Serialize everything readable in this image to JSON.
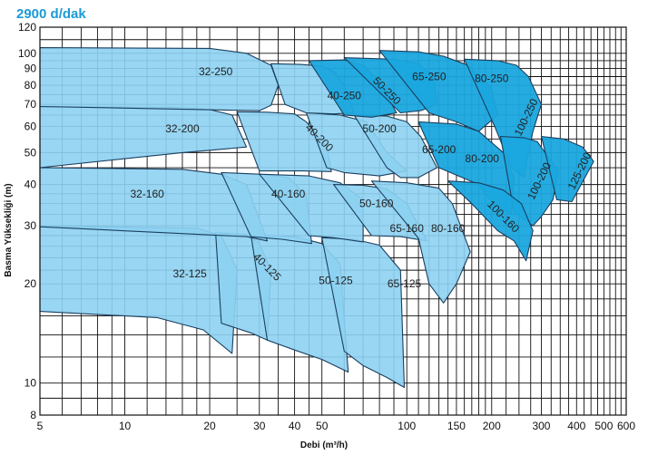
{
  "chart_data": {
    "type": "area",
    "title": "2900 d/dak",
    "xlabel": "Debi (m³/h)",
    "ylabel": "Basma Yüksekliği (m)",
    "x_scale": "log",
    "y_scale": "log",
    "xlim": [
      5,
      600
    ],
    "ylim": [
      8,
      120
    ],
    "x_ticks": [
      5,
      10,
      20,
      30,
      40,
      50,
      100,
      150,
      200,
      300,
      400,
      500,
      600
    ],
    "y_ticks": [
      8,
      10,
      20,
      30,
      40,
      50,
      60,
      70,
      80,
      90,
      100,
      120
    ],
    "grid": true,
    "colors": {
      "light_series": "#8dd2f2",
      "dark_series": "#1aa7de",
      "outline": "#1b3f5e",
      "title": "#1a9ad6"
    },
    "regions": [
      {
        "name": "32-125",
        "label": "32-125",
        "shade": "light",
        "outline": [
          [
            5,
            30
          ],
          [
            18,
            29.5
          ],
          [
            22,
            28
          ],
          [
            25,
            22
          ],
          [
            24,
            12.3
          ],
          [
            19,
            14.5
          ],
          [
            13,
            15.8
          ],
          [
            5,
            16.5
          ]
        ],
        "label_at": [
          17,
          21.5
        ]
      },
      {
        "name": "40-125",
        "label": "40-125",
        "shade": "light",
        "outline": [
          [
            21,
            28.6
          ],
          [
            27,
            28.2
          ],
          [
            30,
            26.5
          ],
          [
            33,
            22
          ],
          [
            32,
            13.5
          ],
          [
            28,
            14.2
          ],
          [
            22,
            15.2
          ]
        ],
        "label_at": [
          32,
          22.5
        ],
        "rotate": 45
      },
      {
        "name": "50-125",
        "label": "50-125",
        "shade": "light",
        "outline": [
          [
            28,
            28.2
          ],
          [
            40,
            27.8
          ],
          [
            50,
            26.5
          ],
          [
            58,
            23
          ],
          [
            62,
            10.8
          ],
          [
            50,
            11.8
          ],
          [
            40,
            12.6
          ],
          [
            32,
            13.5
          ]
        ],
        "label_at": [
          56,
          20.5
        ]
      },
      {
        "name": "65-125",
        "label": "65-125",
        "shade": "light",
        "outline": [
          [
            50,
            27.6
          ],
          [
            65,
            27.3
          ],
          [
            80,
            26.2
          ],
          [
            95,
            22
          ],
          [
            98,
            9.7
          ],
          [
            85,
            10.4
          ],
          [
            70,
            11.3
          ],
          [
            60,
            12.5
          ]
        ],
        "label_at": [
          98,
          20
        ]
      },
      {
        "name": "32-160",
        "label": "32-160",
        "shade": "light",
        "outline": [
          [
            5,
            45
          ],
          [
            16,
            44.5
          ],
          [
            22,
            43
          ],
          [
            27,
            40
          ],
          [
            32,
            27
          ],
          [
            27,
            27.8
          ],
          [
            5,
            29.8
          ]
        ],
        "label_at": [
          12,
          37.5
        ]
      },
      {
        "name": "40-160",
        "label": "40-160",
        "shade": "light",
        "outline": [
          [
            22,
            43.5
          ],
          [
            30,
            43
          ],
          [
            38,
            42
          ],
          [
            44,
            37
          ],
          [
            46,
            26.5
          ],
          [
            36,
            27.3
          ],
          [
            28,
            27.8
          ]
        ],
        "label_at": [
          38,
          37.5
        ]
      },
      {
        "name": "50-160",
        "label": "50-160",
        "shade": "light",
        "outline": [
          [
            30,
            43
          ],
          [
            45,
            42.5
          ],
          [
            58,
            40.5
          ],
          [
            70,
            36
          ],
          [
            70,
            26.8
          ],
          [
            55,
            27.6
          ],
          [
            45,
            28
          ]
        ],
        "label_at": [
          78,
          35
        ]
      },
      {
        "name": "65-160",
        "label": "65-160",
        "shade": "light",
        "outline": [
          [
            55,
            40
          ],
          [
            70,
            39.8
          ],
          [
            85,
            38.8
          ],
          [
            100,
            35
          ],
          [
            118,
            27
          ],
          [
            95,
            27.8
          ],
          [
            75,
            28
          ]
        ],
        "label_at": [
          100,
          29.5
        ]
      },
      {
        "name": "80-160",
        "label": "80-160",
        "shade": "light",
        "outline": [
          [
            75,
            41
          ],
          [
            100,
            40.5
          ],
          [
            130,
            39
          ],
          [
            145,
            35
          ],
          [
            168,
            25
          ],
          [
            150,
            20
          ],
          [
            135,
            17.5
          ],
          [
            120,
            20
          ],
          [
            110,
            27.5
          ]
        ],
        "label_at": [
          140,
          29.5
        ]
      },
      {
        "name": "32-200",
        "label": "32-200",
        "shade": "light",
        "outline": [
          [
            5,
            69
          ],
          [
            16,
            68.5
          ],
          [
            20,
            67.5
          ],
          [
            24,
            65
          ],
          [
            27,
            52
          ],
          [
            16,
            50
          ],
          [
            5,
            45
          ]
        ],
        "label_at": [
          16,
          59
        ]
      },
      {
        "name": "40-200",
        "label": "40-200",
        "shade": "light",
        "outline": [
          [
            25,
            66.5
          ],
          [
            32,
            66.3
          ],
          [
            40,
            65.5
          ],
          [
            44,
            62
          ],
          [
            52,
            52
          ],
          [
            54,
            43.8
          ],
          [
            42,
            44
          ],
          [
            30,
            44
          ]
        ],
        "label_at": [
          49,
          55.5
        ],
        "rotate": 45
      },
      {
        "name": "50-200",
        "label": "50-200",
        "shade": "light",
        "outline": [
          [
            44,
            66
          ],
          [
            58,
            65
          ],
          [
            72,
            62
          ],
          [
            85,
            50
          ],
          [
            100,
            44
          ],
          [
            80,
            42.5
          ],
          [
            60,
            43.5
          ],
          [
            52,
            45
          ]
        ],
        "label_at": [
          80,
          59
        ]
      },
      {
        "name": "65-200",
        "label": "65-200",
        "shade": "light",
        "outline": [
          [
            65,
            65
          ],
          [
            85,
            64.5
          ],
          [
            100,
            62
          ],
          [
            112,
            56
          ],
          [
            128,
            45
          ],
          [
            110,
            42
          ],
          [
            95,
            42
          ],
          [
            85,
            45
          ]
        ],
        "label_at": [
          130,
          51
        ]
      },
      {
        "name": "32-250",
        "label": "32-250",
        "shade": "light",
        "outline": [
          [
            5,
            104
          ],
          [
            20,
            103.5
          ],
          [
            27,
            100
          ],
          [
            33,
            92
          ],
          [
            35,
            80
          ],
          [
            33,
            69.5
          ],
          [
            30,
            67
          ],
          [
            5,
            69
          ]
        ],
        "label_at": [
          21,
          88
        ]
      },
      {
        "name": "40-250",
        "label": "40-250",
        "shade": "light",
        "outline": [
          [
            33,
            93
          ],
          [
            42,
            92.5
          ],
          [
            50,
            91.5
          ],
          [
            55,
            88
          ],
          [
            60,
            80
          ],
          [
            65,
            66
          ],
          [
            55,
            65.5
          ],
          [
            44,
            66
          ],
          [
            37,
            70
          ]
        ],
        "label_at": [
          60,
          74.5
        ]
      },
      {
        "name": "50-250",
        "label": "50-250",
        "shade": "dark",
        "outline": [
          [
            45,
            95
          ],
          [
            60,
            95.5
          ],
          [
            70,
            92
          ],
          [
            80,
            82
          ],
          [
            92,
            66
          ],
          [
            75,
            64
          ],
          [
            60,
            65
          ]
        ],
        "label_at": [
          85,
          77
        ],
        "rotate": 45
      },
      {
        "name": "65-250",
        "label": "65-250",
        "shade": "dark",
        "outline": [
          [
            60,
            97
          ],
          [
            90,
            96
          ],
          [
            110,
            93
          ],
          [
            125,
            85
          ],
          [
            128,
            70
          ],
          [
            112,
            67
          ],
          [
            95,
            66
          ]
        ],
        "label_at": [
          120,
          85
        ]
      },
      {
        "name": "80-250",
        "label": "80-250",
        "shade": "dark",
        "outline": [
          [
            80,
            102
          ],
          [
            110,
            101
          ],
          [
            135,
            98
          ],
          [
            165,
            92
          ],
          [
            200,
            78
          ],
          [
            210,
            65
          ],
          [
            180,
            58
          ],
          [
            150,
            62
          ],
          [
            120,
            66
          ]
        ],
        "label_at": [
          200,
          84
        ]
      },
      {
        "name": "100-250",
        "label": "100-250",
        "shade": "dark",
        "outline": [
          [
            160,
            96
          ],
          [
            210,
            95
          ],
          [
            245,
            92
          ],
          [
            270,
            85
          ],
          [
            300,
            70
          ],
          [
            280,
            58
          ],
          [
            260,
            42
          ],
          [
            235,
            45
          ],
          [
            205,
            60
          ]
        ],
        "label_at": [
          265,
          64
        ],
        "rotate": -64
      },
      {
        "name": "80-200",
        "label": "80-200",
        "shade": "dark",
        "outline": [
          [
            110,
            62
          ],
          [
            150,
            61
          ],
          [
            180,
            58
          ],
          [
            220,
            50
          ],
          [
            240,
            42
          ],
          [
            235,
            32.5
          ],
          [
            205,
            34.5
          ],
          [
            180,
            40
          ],
          [
            130,
            45
          ]
        ],
        "label_at": [
          185,
          48
        ]
      },
      {
        "name": "100-200",
        "label": "100-200",
        "shade": "dark",
        "outline": [
          [
            215,
            56
          ],
          [
            260,
            55.5
          ],
          [
            290,
            54
          ],
          [
            320,
            48
          ],
          [
            345,
            44
          ],
          [
            330,
            36
          ],
          [
            300,
            32
          ],
          [
            280,
            30
          ],
          [
            240,
            33
          ]
        ],
        "label_at": [
          295,
          41
        ],
        "rotate": -64
      },
      {
        "name": "125-200",
        "label": "125-200",
        "shade": "dark",
        "outline": [
          [
            300,
            56
          ],
          [
            360,
            55
          ],
          [
            420,
            52
          ],
          [
            460,
            47
          ],
          [
            415,
            40
          ],
          [
            385,
            35.5
          ],
          [
            340,
            36
          ]
        ],
        "label_at": [
          410,
          44
        ],
        "rotate": -64
      },
      {
        "name": "100-160",
        "label": "100-160",
        "shade": "dark",
        "outline": [
          [
            140,
            41
          ],
          [
            180,
            40.5
          ],
          [
            220,
            38.5
          ],
          [
            255,
            35
          ],
          [
            280,
            29
          ],
          [
            265,
            23.5
          ],
          [
            240,
            27
          ],
          [
            210,
            29
          ],
          [
            170,
            35
          ]
        ],
        "label_at": [
          220,
          32
        ],
        "rotate": 45
      }
    ]
  }
}
